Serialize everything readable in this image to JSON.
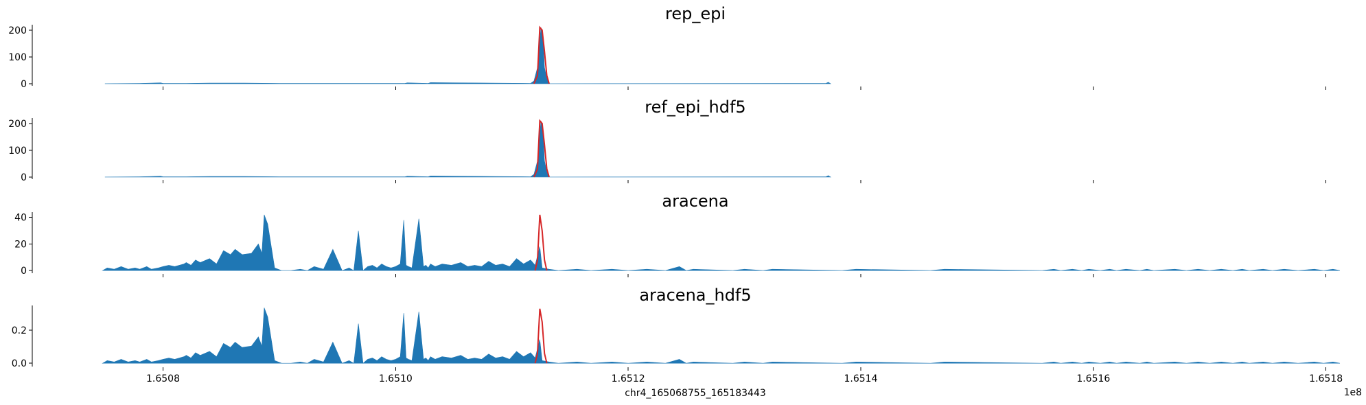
{
  "chart_data": [
    {
      "type": "area",
      "title": "rep_epi",
      "ylim": [
        -8,
        220
      ],
      "yticks": [
        0,
        100,
        200
      ],
      "ytick_labels": [
        "0",
        "100",
        "200"
      ],
      "xlim": [
        165068755,
        165183443
      ],
      "xticks": [
        165080000,
        165100000,
        165120000,
        165140000,
        165160000,
        165180000
      ],
      "xtick_labels": [],
      "fill_color": "#1f77b4",
      "highlight_color": "#d62728",
      "series": [
        {
          "x": [
            165075000,
            165078000,
            165079800,
            165080000,
            165082000,
            165084000,
            165087000,
            165090000,
            165100800,
            165101000,
            165102800,
            165103000,
            165111600,
            165111900,
            165112200,
            165112500,
            165112700,
            165112800,
            165113000,
            165113200,
            165137000,
            165137200,
            165137400
          ],
          "y": [
            0,
            1,
            3,
            1,
            1,
            2,
            2,
            1,
            1,
            3,
            1,
            4,
            1,
            10,
            60,
            210,
            150,
            60,
            20,
            0,
            1,
            5,
            0
          ]
        }
      ],
      "highlight": {
        "x": [
          165111900,
          165112200,
          165112400,
          165112600,
          165112800,
          165113000,
          165113200
        ],
        "y": [
          0,
          30,
          210,
          200,
          120,
          30,
          0
        ]
      }
    },
    {
      "type": "area",
      "title": "ref_epi_hdf5",
      "ylim": [
        -8,
        220
      ],
      "yticks": [
        0,
        100,
        200
      ],
      "ytick_labels": [
        "0",
        "100",
        "200"
      ],
      "xlim": [
        165068755,
        165183443
      ],
      "xticks": [
        165080000,
        165100000,
        165120000,
        165140000,
        165160000,
        165180000
      ],
      "xtick_labels": [],
      "fill_color": "#1f77b4",
      "highlight_color": "#d62728",
      "series": [
        {
          "x": [
            165075000,
            165078000,
            165079800,
            165080000,
            165082000,
            165084000,
            165087000,
            165090000,
            165100800,
            165101000,
            165102800,
            165103000,
            165111600,
            165111900,
            165112200,
            165112500,
            165112700,
            165112800,
            165113000,
            165113200,
            165137000,
            165137200,
            165137400
          ],
          "y": [
            0,
            1,
            3,
            1,
            1,
            2,
            2,
            1,
            1,
            3,
            1,
            4,
            1,
            10,
            60,
            210,
            150,
            60,
            20,
            0,
            1,
            5,
            0
          ]
        }
      ],
      "highlight": {
        "x": [
          165111900,
          165112200,
          165112400,
          165112600,
          165112800,
          165113000,
          165113200
        ],
        "y": [
          0,
          30,
          210,
          200,
          120,
          30,
          0
        ]
      }
    },
    {
      "type": "area",
      "title": "aracena",
      "ylim": [
        -2,
        44
      ],
      "yticks": [
        0,
        20,
        40
      ],
      "ytick_labels": [
        "0",
        "20",
        "40"
      ],
      "xlim": [
        165068755,
        165183443
      ],
      "xticks": [
        165080000,
        165100000,
        165120000,
        165140000,
        165160000,
        165180000
      ],
      "xtick_labels": [],
      "fill_color": "#1f77b4",
      "highlight_color": "#d62728",
      "series": [
        {
          "x": [
            165074800,
            165075200,
            165075800,
            165076400,
            165077000,
            165077600,
            165078000,
            165078600,
            165079000,
            165079600,
            165080000,
            165080500,
            165081000,
            165081400,
            165081800,
            165082000,
            165082400,
            165082800,
            165083200,
            165084000,
            165084600,
            165085200,
            165085800,
            165086200,
            165086800,
            165087600,
            165088200,
            165088500,
            165088700,
            165089000,
            165089600,
            165090200,
            165091000,
            165091800,
            165092400,
            165093000,
            165093800,
            165094600,
            165095400,
            165096000,
            165096400,
            165096800,
            165097200,
            165097600,
            165098000,
            165098400,
            165098800,
            165099200,
            165099600,
            165100000,
            165100400,
            165100700,
            165100900,
            165101100,
            165101400,
            165102000,
            165102400,
            165102600,
            165102800,
            165103000,
            165103400,
            165104000,
            165104800,
            165105600,
            165106200,
            165106800,
            165107400,
            165108000,
            165108600,
            165109200,
            165109800,
            165110400,
            165111000,
            165111600,
            165112000,
            165112400,
            165112600,
            165113200,
            165114000,
            165115600,
            165116800,
            165118600,
            165120000,
            165121600,
            165123200,
            165124400,
            165125000,
            165125600,
            165129000,
            165130000,
            165131600,
            165132400,
            165138400,
            165139600,
            165146000,
            165147200,
            165155600,
            165156600,
            165157200,
            165158200,
            165159000,
            165159600,
            165160600,
            165161400,
            165162000,
            165162800,
            165164000,
            165164600,
            165165200,
            165167000,
            165168000,
            165169000,
            165170000,
            165171000,
            165172000,
            165172800,
            165173400,
            165174600,
            165175400,
            165176400,
            165177600,
            165179000,
            165179800,
            165180600,
            165181200
          ],
          "y": [
            0,
            2,
            1,
            3,
            1,
            2,
            1,
            3,
            1,
            2,
            3,
            4,
            3,
            4,
            5,
            6,
            4,
            8,
            6,
            9,
            5,
            15,
            12,
            16,
            12,
            13,
            20,
            13,
            42,
            35,
            2,
            0,
            0,
            1,
            0,
            3,
            1,
            16,
            0,
            2,
            0,
            30,
            0,
            3,
            4,
            2,
            5,
            3,
            2,
            3,
            5,
            38,
            4,
            3,
            2,
            39,
            3,
            4,
            2,
            5,
            3,
            5,
            4,
            6,
            3,
            4,
            3,
            7,
            4,
            5,
            3,
            9,
            5,
            8,
            4,
            18,
            2,
            1,
            0,
            1,
            0,
            1,
            0,
            1,
            0,
            3,
            0,
            1,
            0,
            1,
            0,
            1,
            0,
            1,
            0,
            1,
            0,
            1,
            0,
            1,
            0,
            1,
            0,
            1,
            0,
            1,
            0,
            1,
            0,
            1,
            0,
            1,
            0,
            1,
            0,
            1,
            0,
            1,
            0,
            1,
            0,
            1,
            0,
            1,
            0
          ]
        }
      ],
      "highlight": {
        "x": [
          165112000,
          165112200,
          165112400,
          165112600,
          165112800,
          165113000
        ],
        "y": [
          0,
          8,
          42,
          30,
          8,
          0
        ]
      }
    },
    {
      "type": "area",
      "title": "aracena_hdf5",
      "ylim": [
        -0.02,
        0.35
      ],
      "yticks": [
        0,
        0.2
      ],
      "ytick_labels": [
        "0.0",
        "0.2"
      ],
      "xlim": [
        165068755,
        165183443
      ],
      "xticks": [
        165080000,
        165100000,
        165120000,
        165140000,
        165160000,
        165180000
      ],
      "xtick_labels": [
        "1.6508",
        "1.6510",
        "1.6512",
        "1.6514",
        "1.6516",
        "1.6518"
      ],
      "fill_color": "#1f77b4",
      "highlight_color": "#d62728",
      "series": [
        {
          "x": [
            165074800,
            165075200,
            165075800,
            165076400,
            165077000,
            165077600,
            165078000,
            165078600,
            165079000,
            165079600,
            165080000,
            165080500,
            165081000,
            165081400,
            165081800,
            165082000,
            165082400,
            165082800,
            165083200,
            165084000,
            165084600,
            165085200,
            165085800,
            165086200,
            165086800,
            165087600,
            165088200,
            165088500,
            165088700,
            165089000,
            165089600,
            165090200,
            165091000,
            165091800,
            165092400,
            165093000,
            165093800,
            165094600,
            165095400,
            165096000,
            165096400,
            165096800,
            165097200,
            165097600,
            165098000,
            165098400,
            165098800,
            165099200,
            165099600,
            165100000,
            165100400,
            165100700,
            165100900,
            165101100,
            165101400,
            165102000,
            165102400,
            165102600,
            165102800,
            165103000,
            165103400,
            165104000,
            165104800,
            165105600,
            165106200,
            165106800,
            165107400,
            165108000,
            165108600,
            165109200,
            165109800,
            165110400,
            165111000,
            165111600,
            165112000,
            165112400,
            165112600,
            165113200,
            165114000,
            165115600,
            165116800,
            165118600,
            165120000,
            165121600,
            165123200,
            165124400,
            165125000,
            165125600,
            165129000,
            165130000,
            165131600,
            165132400,
            165138400,
            165139600,
            165146000,
            165147200,
            165155600,
            165156600,
            165157200,
            165158200,
            165159000,
            165159600,
            165160600,
            165161400,
            165162000,
            165162800,
            165164000,
            165164600,
            165165200,
            165167000,
            165168000,
            165169000,
            165170000,
            165171000,
            165172000,
            165172800,
            165173400,
            165174600,
            165175400,
            165176400,
            165177600,
            165179000,
            165179800,
            165180600,
            165181200
          ],
          "y": [
            0,
            0.016,
            0.008,
            0.024,
            0.008,
            0.016,
            0.008,
            0.024,
            0.008,
            0.016,
            0.024,
            0.032,
            0.024,
            0.032,
            0.04,
            0.048,
            0.032,
            0.064,
            0.048,
            0.072,
            0.04,
            0.12,
            0.096,
            0.128,
            0.096,
            0.104,
            0.16,
            0.104,
            0.336,
            0.28,
            0.016,
            0,
            0,
            0.008,
            0,
            0.024,
            0.008,
            0.128,
            0,
            0.016,
            0,
            0.24,
            0,
            0.024,
            0.032,
            0.016,
            0.04,
            0.024,
            0.016,
            0.024,
            0.04,
            0.304,
            0.032,
            0.024,
            0.016,
            0.312,
            0.024,
            0.032,
            0.016,
            0.04,
            0.024,
            0.04,
            0.032,
            0.048,
            0.024,
            0.032,
            0.024,
            0.056,
            0.032,
            0.04,
            0.024,
            0.072,
            0.04,
            0.064,
            0.032,
            0.144,
            0.016,
            0.008,
            0,
            0.008,
            0,
            0.008,
            0,
            0.008,
            0,
            0.024,
            0,
            0.008,
            0,
            0.008,
            0,
            0.008,
            0,
            0.008,
            0,
            0.008,
            0,
            0.008,
            0,
            0.008,
            0,
            0.008,
            0,
            0.008,
            0,
            0.008,
            0,
            0.008,
            0,
            0.008,
            0,
            0.008,
            0,
            0.008,
            0,
            0.008,
            0,
            0.008,
            0,
            0.008,
            0,
            0.008,
            0,
            0.008,
            0
          ]
        }
      ],
      "highlight": {
        "x": [
          165112000,
          165112200,
          165112400,
          165112600,
          165112800,
          165113000
        ],
        "y": [
          0,
          0.06,
          0.33,
          0.25,
          0.06,
          0
        ]
      }
    }
  ],
  "xlabel": "chr4_165068755_165183443",
  "x_offset_label": "1e8"
}
